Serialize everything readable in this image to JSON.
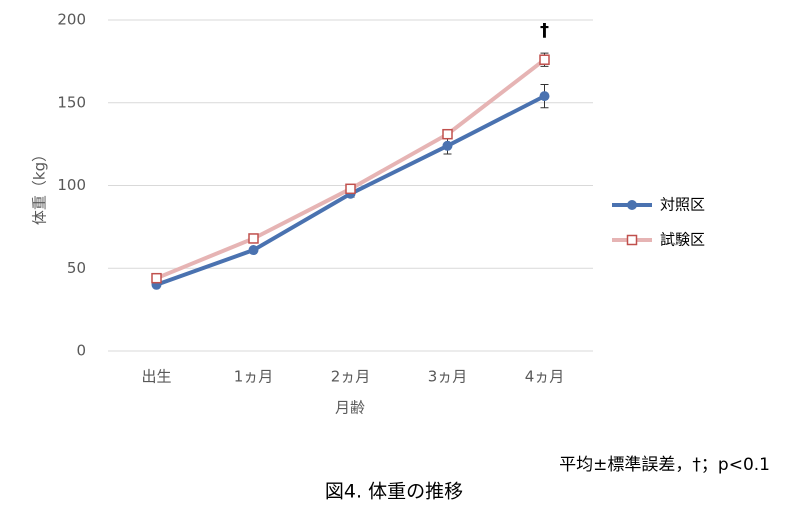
{
  "chart_data": {
    "type": "line",
    "categories": [
      "出生",
      "1ヵ月",
      "2ヵ月",
      "3ヵ月",
      "4ヵ月"
    ],
    "series": [
      {
        "name": "対照区",
        "color": "#4a72b0",
        "marker": "circle",
        "values": [
          40,
          61,
          95,
          124,
          154
        ],
        "errors": [
          1,
          1,
          2,
          5,
          7
        ]
      },
      {
        "name": "試験区",
        "color": "#e6b4b4",
        "marker_color": "#c0504d",
        "marker": "square",
        "values": [
          44,
          68,
          98,
          131,
          176
        ],
        "errors": [
          1,
          1,
          2,
          1,
          4
        ]
      }
    ],
    "ylim": [
      0,
      200
    ],
    "yticks": [
      0,
      50,
      100,
      150,
      200
    ],
    "grid": true,
    "ylabel": "体重（kg）",
    "xlabel": "月齢",
    "legend": "right",
    "annotation": "†",
    "note": "平均±標準誤差，†；p<0.1",
    "caption": "図4. 体重の推移"
  }
}
